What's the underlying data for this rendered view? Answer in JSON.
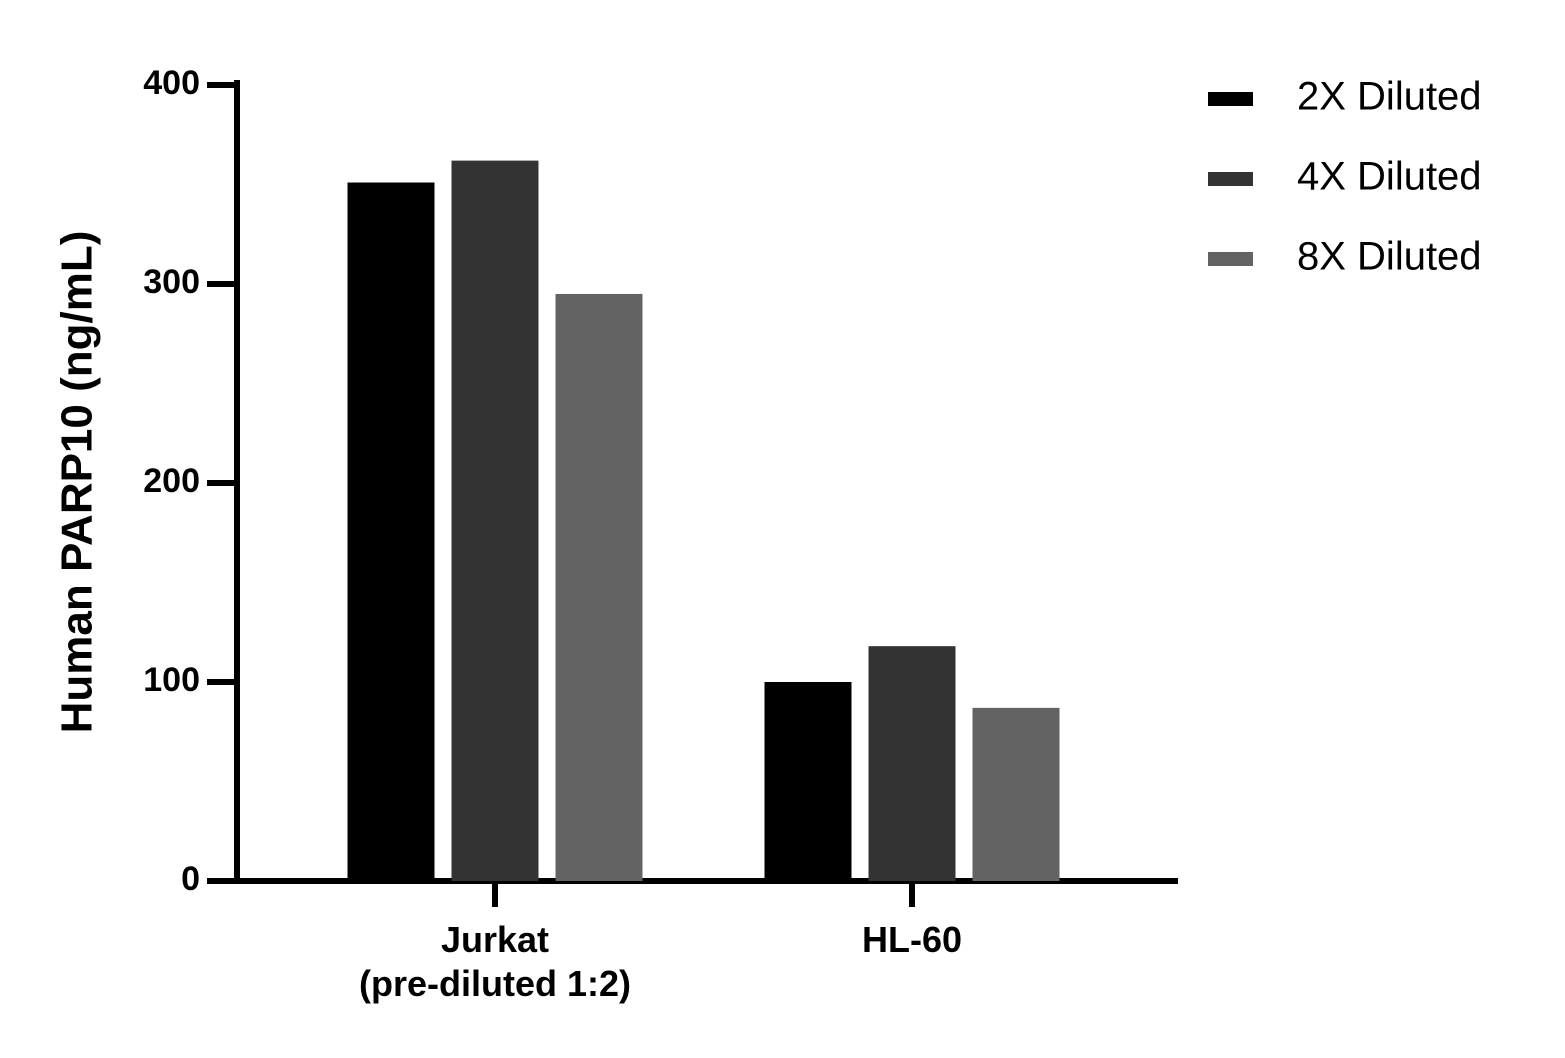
{
  "chart_data": {
    "type": "bar",
    "y_label": "Human PARP10 (ng/mL)",
    "categories": [
      "Jurkat\n(pre-diluted 1:2)",
      "HL-60"
    ],
    "series": [
      {
        "name": "2X Diluted",
        "color": "#000000",
        "values": [
          351,
          100
        ]
      },
      {
        "name": "4X Diluted",
        "color": "#333333",
        "values": [
          362,
          118
        ]
      },
      {
        "name": "8X Diluted",
        "color": "#636363",
        "values": [
          295,
          87
        ]
      }
    ],
    "ylim": [
      0,
      400
    ],
    "yticks": [
      0,
      100,
      200,
      300,
      400
    ],
    "legend": "top-right"
  }
}
